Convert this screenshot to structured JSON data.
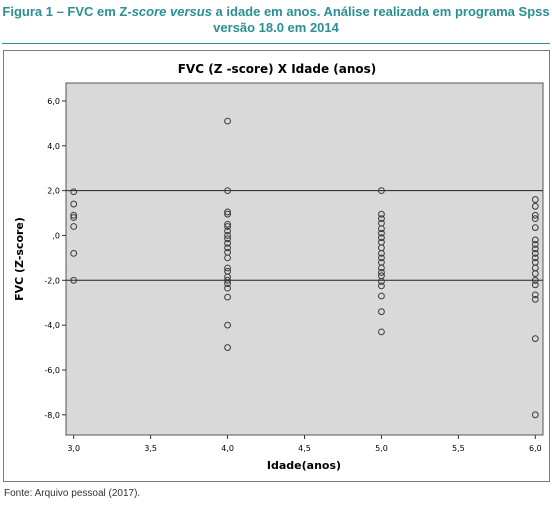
{
  "caption": {
    "line1_prefix": "Figura 1 – FVC em Z-",
    "line1_italic": "score versus",
    "line1_suffix": " a idade em anos. Análise realizada em programa Spss",
    "line2": "versão 18.0 em 2014"
  },
  "source_note": "Fonte: Arquivo pessoal (2017).",
  "chart_data": {
    "type": "scatter",
    "title": "FVC (Z -score) X Idade (anos)",
    "xlabel": "Idade(anos)",
    "ylabel": "FVC (Z-score)",
    "xlim": [
      2.95,
      6.05
    ],
    "ylim": [
      -8.9,
      6.8
    ],
    "x_ticks": [
      3.0,
      3.5,
      4.0,
      4.5,
      5.0,
      5.5,
      6.0
    ],
    "x_tick_labels": [
      "3,0",
      "3,5",
      "4,0",
      "4,5",
      "5,0",
      "5,5",
      "6,0"
    ],
    "y_ticks": [
      6,
      4,
      2,
      0,
      -2,
      -4,
      -6,
      -8
    ],
    "y_tick_labels": [
      "6,0",
      "4,0",
      "2,0",
      ",0",
      "-2,0",
      "-4,0",
      "-6,0",
      "-8,0"
    ],
    "reference_lines_y": [
      2,
      -2
    ],
    "grid": false,
    "background_color": "#d9d9d9",
    "marker_color": "#3a3a3a",
    "points": [
      {
        "x": 3,
        "y": 1.95
      },
      {
        "x": 3,
        "y": 1.4
      },
      {
        "x": 3,
        "y": 0.9
      },
      {
        "x": 3,
        "y": 0.8
      },
      {
        "x": 3,
        "y": 0.4
      },
      {
        "x": 3,
        "y": -0.8
      },
      {
        "x": 3,
        "y": -2.0
      },
      {
        "x": 4,
        "y": 5.1
      },
      {
        "x": 4,
        "y": 2.0
      },
      {
        "x": 4,
        "y": 1.05
      },
      {
        "x": 4,
        "y": 0.95
      },
      {
        "x": 4,
        "y": 0.5
      },
      {
        "x": 4,
        "y": 0.4
      },
      {
        "x": 4,
        "y": 0.2
      },
      {
        "x": 4,
        "y": 0.0
      },
      {
        "x": 4,
        "y": -0.15
      },
      {
        "x": 4,
        "y": -0.35
      },
      {
        "x": 4,
        "y": -0.55
      },
      {
        "x": 4,
        "y": -0.75
      },
      {
        "x": 4,
        "y": -1.0
      },
      {
        "x": 4,
        "y": -1.45
      },
      {
        "x": 4,
        "y": -1.6
      },
      {
        "x": 4,
        "y": -1.85
      },
      {
        "x": 4,
        "y": -2.0
      },
      {
        "x": 4,
        "y": -2.15
      },
      {
        "x": 4,
        "y": -2.35
      },
      {
        "x": 4,
        "y": -2.75
      },
      {
        "x": 4,
        "y": -4.0
      },
      {
        "x": 4,
        "y": -5.0
      },
      {
        "x": 5,
        "y": 2.0
      },
      {
        "x": 5,
        "y": 0.95
      },
      {
        "x": 5,
        "y": 0.75
      },
      {
        "x": 5,
        "y": 0.55
      },
      {
        "x": 5,
        "y": 0.3
      },
      {
        "x": 5,
        "y": 0.1
      },
      {
        "x": 5,
        "y": -0.1
      },
      {
        "x": 5,
        "y": -0.3
      },
      {
        "x": 5,
        "y": -0.55
      },
      {
        "x": 5,
        "y": -0.8
      },
      {
        "x": 5,
        "y": -1.0
      },
      {
        "x": 5,
        "y": -1.2
      },
      {
        "x": 5,
        "y": -1.45
      },
      {
        "x": 5,
        "y": -1.65
      },
      {
        "x": 5,
        "y": -1.8
      },
      {
        "x": 5,
        "y": -2.05
      },
      {
        "x": 5,
        "y": -2.25
      },
      {
        "x": 5,
        "y": -2.7
      },
      {
        "x": 5,
        "y": -3.4
      },
      {
        "x": 5,
        "y": -4.3
      },
      {
        "x": 6,
        "y": 1.6
      },
      {
        "x": 6,
        "y": 1.3
      },
      {
        "x": 6,
        "y": 0.9
      },
      {
        "x": 6,
        "y": 0.75
      },
      {
        "x": 6,
        "y": 0.35
      },
      {
        "x": 6,
        "y": -0.2
      },
      {
        "x": 6,
        "y": -0.4
      },
      {
        "x": 6,
        "y": -0.6
      },
      {
        "x": 6,
        "y": -0.8
      },
      {
        "x": 6,
        "y": -1.0
      },
      {
        "x": 6,
        "y": -1.2
      },
      {
        "x": 6,
        "y": -1.45
      },
      {
        "x": 6,
        "y": -1.7
      },
      {
        "x": 6,
        "y": -2.0
      },
      {
        "x": 6,
        "y": -2.2
      },
      {
        "x": 6,
        "y": -2.65
      },
      {
        "x": 6,
        "y": -2.85
      },
      {
        "x": 6,
        "y": -4.6
      },
      {
        "x": 6,
        "y": -8.0
      }
    ]
  }
}
